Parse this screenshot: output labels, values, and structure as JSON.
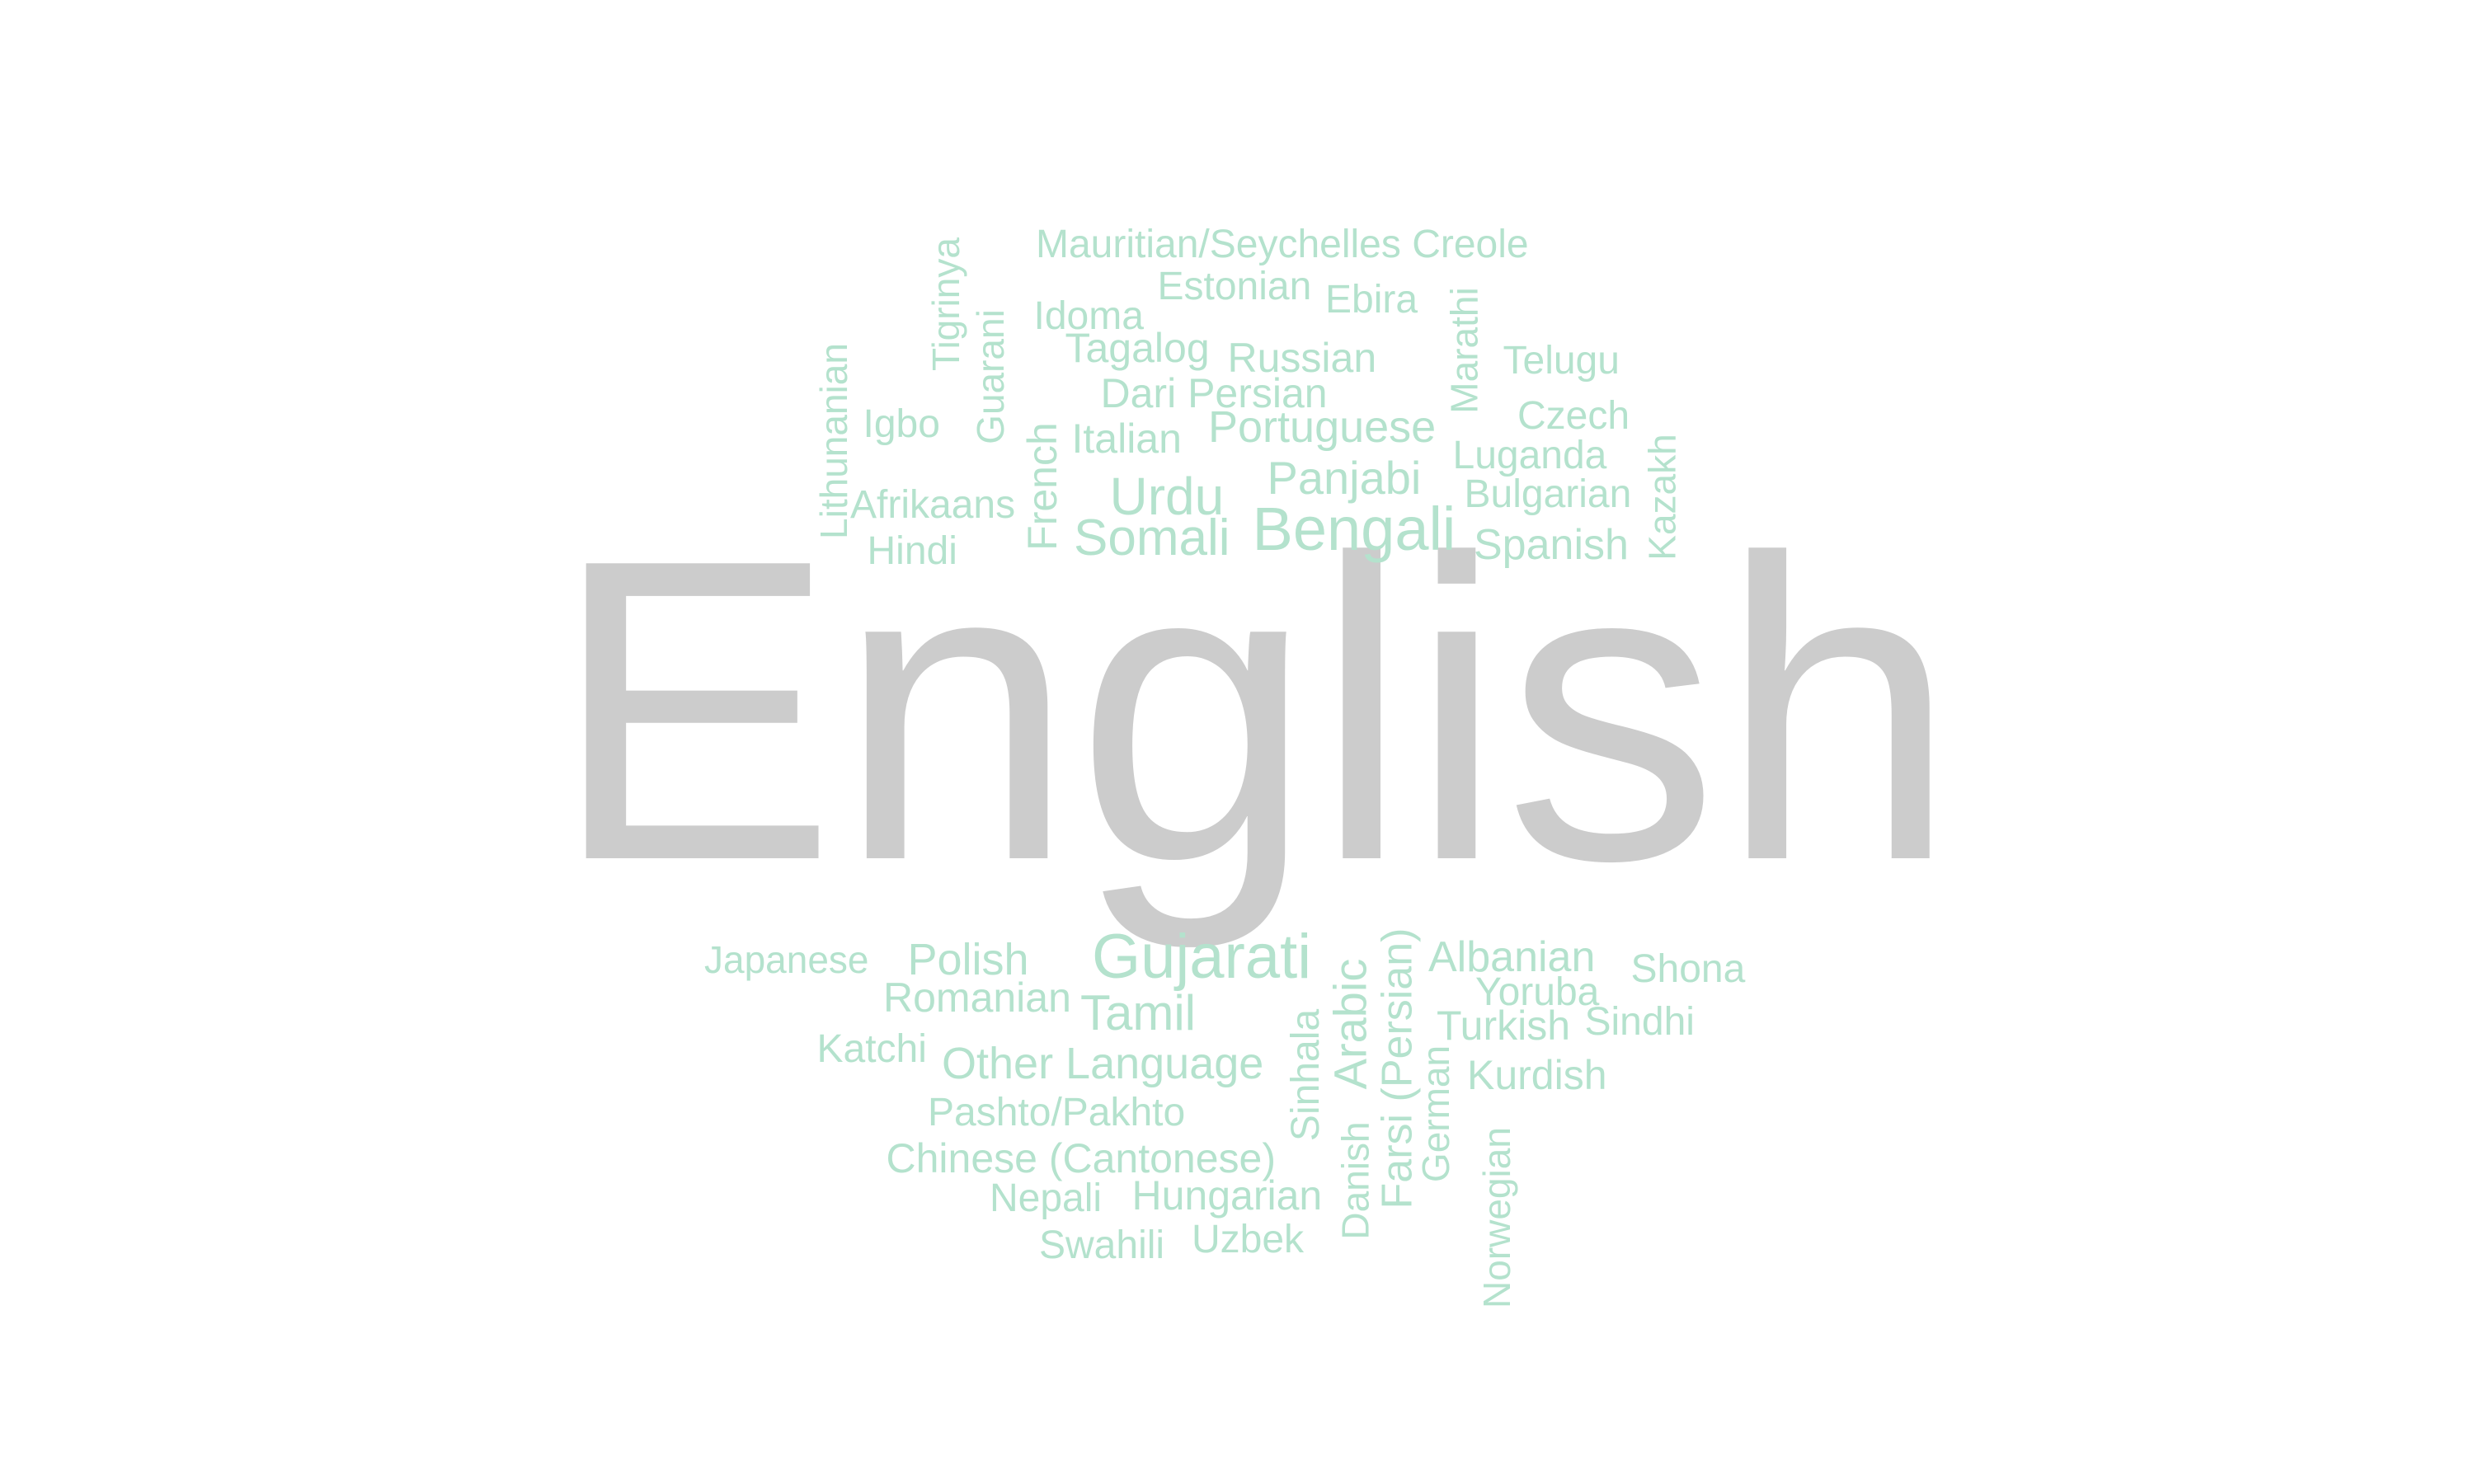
{
  "colors": {
    "background": "#ffffff",
    "primary": "#cccccc",
    "secondary": "#b4e2cd"
  },
  "words": [
    {
      "text": "English",
      "tier": "primary"
    },
    {
      "text": "Mauritian/Seychelles Creole",
      "tier": "secondary"
    },
    {
      "text": "Tigrinya",
      "tier": "secondary"
    },
    {
      "text": "Estonian",
      "tier": "secondary"
    },
    {
      "text": "Ebira",
      "tier": "secondary"
    },
    {
      "text": "Idoma",
      "tier": "secondary"
    },
    {
      "text": "Guarani",
      "tier": "secondary"
    },
    {
      "text": "Marathi",
      "tier": "secondary"
    },
    {
      "text": "Tagalog",
      "tier": "secondary"
    },
    {
      "text": "Russian",
      "tier": "secondary"
    },
    {
      "text": "Telugu",
      "tier": "secondary"
    },
    {
      "text": "Lithunanian",
      "tier": "secondary"
    },
    {
      "text": "Dari Persian",
      "tier": "secondary"
    },
    {
      "text": "Igbo",
      "tier": "secondary"
    },
    {
      "text": "Czech",
      "tier": "secondary"
    },
    {
      "text": "Italian",
      "tier": "secondary"
    },
    {
      "text": "Portuguese",
      "tier": "secondary"
    },
    {
      "text": "French",
      "tier": "secondary"
    },
    {
      "text": "Luganda",
      "tier": "secondary"
    },
    {
      "text": "Kazakh",
      "tier": "secondary"
    },
    {
      "text": "Panjabi",
      "tier": "secondary"
    },
    {
      "text": "Bulgarian",
      "tier": "secondary"
    },
    {
      "text": "Afrikaans",
      "tier": "secondary"
    },
    {
      "text": "Urdu",
      "tier": "secondary"
    },
    {
      "text": "Bengali",
      "tier": "secondary"
    },
    {
      "text": "Somali",
      "tier": "secondary"
    },
    {
      "text": "Spanish",
      "tier": "secondary"
    },
    {
      "text": "Hindi",
      "tier": "secondary"
    },
    {
      "text": "Japanese",
      "tier": "secondary"
    },
    {
      "text": "Polish",
      "tier": "secondary"
    },
    {
      "text": "Gujarati",
      "tier": "secondary"
    },
    {
      "text": "Albanian",
      "tier": "secondary"
    },
    {
      "text": "Shona",
      "tier": "secondary"
    },
    {
      "text": "Romanian",
      "tier": "secondary"
    },
    {
      "text": "Yoruba",
      "tier": "secondary"
    },
    {
      "text": "Tamil",
      "tier": "secondary"
    },
    {
      "text": "Arabic",
      "tier": "secondary"
    },
    {
      "text": "Turkish",
      "tier": "secondary"
    },
    {
      "text": "Sindhi",
      "tier": "secondary"
    },
    {
      "text": "Farsi (Persian)",
      "tier": "secondary"
    },
    {
      "text": "Sinhala",
      "tier": "secondary"
    },
    {
      "text": "Katchi",
      "tier": "secondary"
    },
    {
      "text": "Other Language",
      "tier": "secondary"
    },
    {
      "text": "German",
      "tier": "secondary"
    },
    {
      "text": "Kurdish",
      "tier": "secondary"
    },
    {
      "text": "Pashto/Pakhto",
      "tier": "secondary"
    },
    {
      "text": "Danish",
      "tier": "secondary"
    },
    {
      "text": "Norwegian",
      "tier": "secondary"
    },
    {
      "text": "Chinese (Cantonese)",
      "tier": "secondary"
    },
    {
      "text": "Nepali",
      "tier": "secondary"
    },
    {
      "text": "Hungarian",
      "tier": "secondary"
    },
    {
      "text": "Uzbek",
      "tier": "secondary"
    },
    {
      "text": "Swahili",
      "tier": "secondary"
    }
  ]
}
